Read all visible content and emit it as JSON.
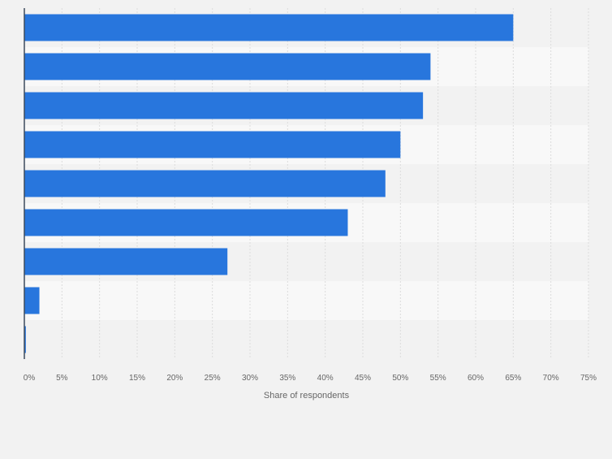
{
  "chart_data": {
    "type": "bar",
    "orientation": "horizontal",
    "categories": [
      "",
      "",
      "",
      "",
      "",
      "",
      "",
      "",
      ""
    ],
    "values": [
      65,
      54,
      53,
      50,
      48,
      43,
      27,
      2,
      0.2
    ],
    "xlabel": "Share of respondents",
    "ylabel": "",
    "xlim": [
      0,
      75
    ],
    "xticks": [
      0,
      5,
      10,
      15,
      20,
      25,
      30,
      35,
      40,
      45,
      50,
      55,
      60,
      65,
      70,
      75
    ],
    "tick_labels": [
      "0%",
      "5%",
      "10%",
      "15%",
      "20%",
      "25%",
      "30%",
      "35%",
      "40%",
      "45%",
      "50%",
      "55%",
      "60%",
      "65%",
      "70%",
      "75%"
    ],
    "grid": true,
    "colors": {
      "bar": "#2876dd",
      "background": "#f2f2f2",
      "band_dark": "#f2f2f2",
      "band_light": "#f8f8f8",
      "grid": "#dcdcdc",
      "axis": "#3c4b5c",
      "text": "#666666"
    }
  }
}
